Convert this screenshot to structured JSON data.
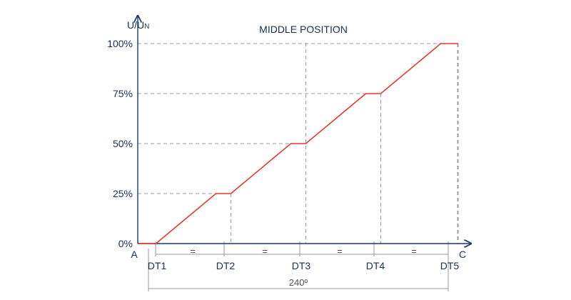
{
  "chart_data": {
    "type": "line",
    "title": "MIDDLE POSITION",
    "ylabel_main": "U/U",
    "ylabel_sub": "N",
    "yticks": [
      "0%",
      "25%",
      "50%",
      "75%",
      "100%"
    ],
    "ylim": [
      0,
      100
    ],
    "xlim": [
      0,
      240
    ],
    "x_start_label": "A",
    "x_end_label": "C",
    "dt_labels": [
      "DT1",
      "DT2",
      "DT3",
      "DT4",
      "DT5"
    ],
    "dt_positions": [
      0,
      60,
      120,
      180,
      240
    ],
    "equal_marks": [
      "=",
      "=",
      "=",
      "="
    ],
    "span_label": "240º",
    "series": [
      {
        "x": [
          -8,
          6,
          54,
          66,
          114,
          126,
          174,
          186,
          234,
          248
        ],
        "y": [
          0,
          0,
          25,
          25,
          50,
          50,
          75,
          75,
          100,
          100
        ]
      }
    ],
    "grid": "dashed reference lines at 25%, 50%, 75%, 100% and at each step",
    "colors": {
      "curve": "#e8392b",
      "axis": "#1f3a63",
      "grid": "#9a9a9a"
    }
  }
}
